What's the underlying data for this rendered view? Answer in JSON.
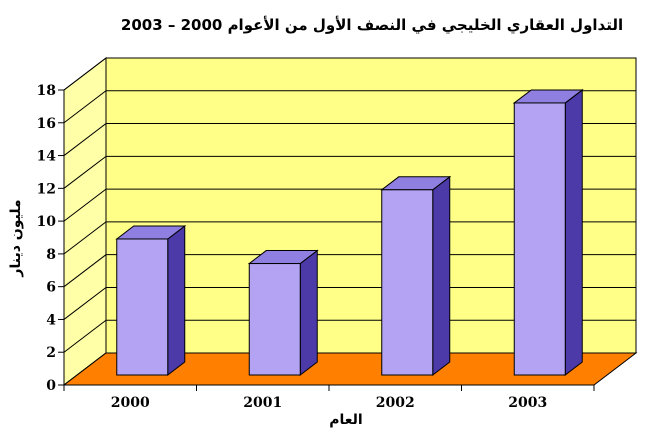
{
  "chart_data": {
    "type": "bar",
    "title": "التداول العقاري الخليجي في النصف الأول من الأعوام 2000 – 2003",
    "xlabel": "العام",
    "ylabel": "مليون دينار",
    "categories": [
      "2000",
      "2001",
      "2002",
      "2003"
    ],
    "values": [
      8.3,
      6.8,
      11.3,
      16.6
    ],
    "ylim": [
      0,
      18
    ],
    "yticks": [
      0,
      2,
      4,
      6,
      8,
      10,
      12,
      14,
      16,
      18
    ],
    "grid": true,
    "legend": "none",
    "three_d": true,
    "colors": {
      "bar_front": "#b3a3f2",
      "bar_top": "#8f7fe0",
      "bar_side": "#4b3aa8",
      "wall": "#ffff88",
      "left_wall": "#ffffa8",
      "floor": "#ff7f00",
      "gridline": "#000000"
    }
  }
}
